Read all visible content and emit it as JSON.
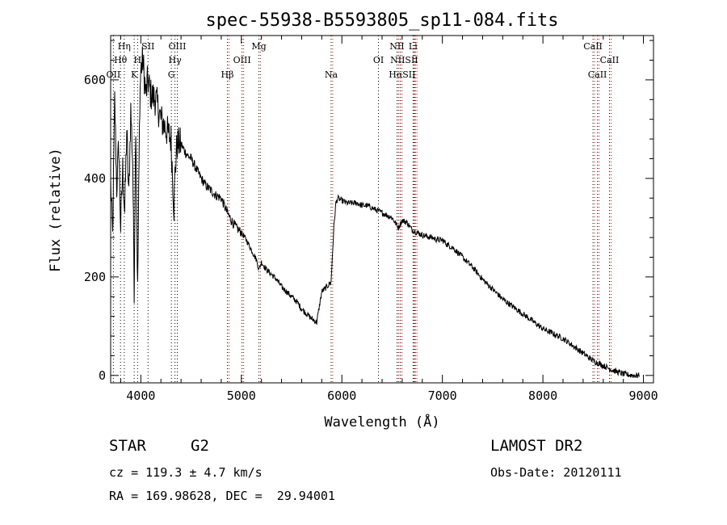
{
  "chart_data": {
    "type": "line",
    "title": "spec-55938-B5593805_sp11-084.fits",
    "xlabel": "Wavelength (Å)",
    "ylabel": "Flux (relative)",
    "xlim": [
      3700,
      9100
    ],
    "ylim": [
      -15,
      690
    ],
    "x_ticks": [
      4000,
      5000,
      6000,
      7000,
      8000,
      9000
    ],
    "y_ticks": [
      0,
      200,
      400,
      600
    ],
    "grid": false,
    "series": [
      {
        "x": [
          3700,
          3720,
          3740,
          3760,
          3780,
          3800,
          3820,
          3840,
          3860,
          3880,
          3900,
          3920,
          3934,
          3950,
          3968,
          3990,
          4000,
          4020,
          4050,
          4070,
          4100,
          4150,
          4200,
          4250,
          4300,
          4330,
          4340,
          4360,
          4400,
          4450,
          4500,
          4550,
          4600,
          4650,
          4700,
          4750,
          4800,
          4861,
          4900,
          4950,
          5000,
          5050,
          5100,
          5150,
          5175,
          5200,
          5250,
          5300,
          5350,
          5400,
          5450,
          5500,
          5550,
          5600,
          5650,
          5700,
          5750,
          5800,
          5850,
          5893,
          5920,
          5940,
          5960,
          6000,
          6050,
          6100,
          6150,
          6200,
          6250,
          6300,
          6350,
          6400,
          6450,
          6500,
          6563,
          6600,
          6650,
          6700,
          6750,
          6800,
          6850,
          6900,
          6950,
          7000,
          7050,
          7100,
          7200,
          7300,
          7400,
          7500,
          7600,
          7700,
          7800,
          7900,
          8000,
          8100,
          8200,
          8300,
          8400,
          8500,
          8600,
          8700,
          8800,
          8900,
          8960
        ],
        "y": [
          390,
          280,
          560,
          380,
          470,
          300,
          420,
          330,
          500,
          360,
          540,
          430,
          180,
          520,
          170,
          560,
          620,
          640,
          570,
          600,
          570,
          560,
          520,
          500,
          480,
          340,
          410,
          470,
          470,
          450,
          440,
          420,
          400,
          385,
          375,
          365,
          360,
          330,
          315,
          300,
          290,
          275,
          255,
          235,
          215,
          230,
          215,
          205,
          195,
          180,
          170,
          160,
          150,
          135,
          125,
          115,
          108,
          170,
          180,
          190,
          300,
          350,
          360,
          355,
          350,
          350,
          350,
          345,
          345,
          340,
          335,
          330,
          325,
          320,
          300,
          315,
          310,
          295,
          290,
          285,
          282,
          280,
          275,
          275,
          265,
          260,
          240,
          220,
          195,
          175,
          155,
          140,
          125,
          110,
          95,
          85,
          75,
          60,
          45,
          30,
          20,
          10,
          3,
          0,
          0
        ]
      }
    ],
    "lines": {
      "black": [
        {
          "name": "OII",
          "w": 3727
        },
        {
          "name": "Hθ",
          "w": 3798
        },
        {
          "name": "Hη",
          "w": 3835
        },
        {
          "name": "K",
          "w": 3934
        },
        {
          "name": "H",
          "w": 3968
        },
        {
          "name": "SII",
          "w": 4072
        },
        {
          "name": "G",
          "w": 4304
        },
        {
          "name": "Hγ",
          "w": 4340
        },
        {
          "name": "OIII",
          "w": 4363
        },
        {
          "name": "Hβ",
          "w": 4861
        },
        {
          "name": "OIII",
          "w": 5007
        },
        {
          "name": "Mg",
          "w": 5175
        },
        {
          "name": "Na",
          "w": 5893
        },
        {
          "name": "OI",
          "w": 6364
        },
        {
          "name": "NII",
          "w": 6548
        },
        {
          "name": "Hα",
          "w": 6563
        },
        {
          "name": "NII",
          "w": 6583
        },
        {
          "name": "Li",
          "w": 6708
        },
        {
          "name": "SII",
          "w": 6716
        },
        {
          "name": "SII",
          "w": 6731
        },
        {
          "name": "CaII",
          "w": 8498
        },
        {
          "name": "CaII",
          "w": 8542
        },
        {
          "name": "CaII",
          "w": 8662
        }
      ],
      "red": [
        4861,
        5007,
        5175,
        5893,
        6548,
        6563,
        6583,
        6708,
        6716,
        6731,
        8498,
        8542,
        8662
      ],
      "labels": [
        {
          "text": "OII",
          "w": 3727,
          "row": 3
        },
        {
          "text": "Hθ",
          "w": 3798,
          "row": 2
        },
        {
          "text": "Hη",
          "w": 3835,
          "row": 1
        },
        {
          "text": "K",
          "w": 3934,
          "row": 3
        },
        {
          "text": "H",
          "w": 3968,
          "row": 2
        },
        {
          "text": "SII",
          "w": 4072,
          "row": 1
        },
        {
          "text": "G",
          "w": 4304,
          "row": 3
        },
        {
          "text": "Hγ",
          "w": 4340,
          "row": 2
        },
        {
          "text": "OIII",
          "w": 4363,
          "row": 1
        },
        {
          "text": "Hβ",
          "w": 4861,
          "row": 3
        },
        {
          "text": "OIII",
          "w": 5007,
          "row": 2
        },
        {
          "text": "Mg",
          "w": 5175,
          "row": 1
        },
        {
          "text": "Na",
          "w": 5893,
          "row": 3
        },
        {
          "text": "OI",
          "w": 6364,
          "row": 2
        },
        {
          "text": "NII",
          "w": 6548,
          "row": 1
        },
        {
          "text": "Li",
          "w": 6708,
          "row": 1
        },
        {
          "text": "NIISII",
          "w": 6620,
          "row": 2
        },
        {
          "text": "HαSII",
          "w": 6600,
          "row": 3
        },
        {
          "text": "CaII",
          "w": 8498,
          "row": 1
        },
        {
          "text": "CaII",
          "w": 8662,
          "row": 2
        },
        {
          "text": "CaII",
          "w": 8542,
          "row": 3
        }
      ]
    },
    "colors": {
      "spectrum": "#000000",
      "line_black": "#000000",
      "line_red": "#cc0000"
    }
  },
  "info": {
    "object_type": "STAR",
    "subclass": "G2",
    "survey": "LAMOST DR2",
    "cz": "cz = 119.3 ± 4.7 km/s",
    "obs_date": "Obs-Date: 20120111",
    "radec": "RA = 169.98628, DEC =  29.94001"
  }
}
